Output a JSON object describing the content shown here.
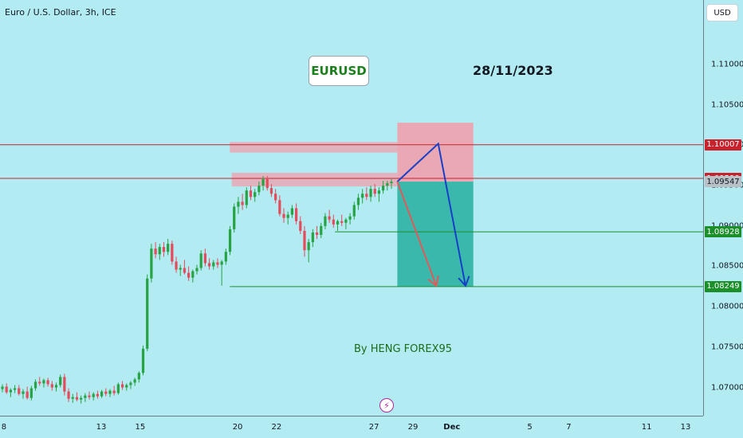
{
  "header": {
    "symbol_title": "Euro / U.S. Dollar, 3h, ICE"
  },
  "annotations": {
    "pair_label": "EURUSD",
    "date_text": "28/11/2023",
    "credit_text": "By HENG FOREX95"
  },
  "toolbar": {
    "currency_button": "USD",
    "flash_icon": "lightning-icon"
  },
  "colors": {
    "background": "#b2ebf2",
    "bull": "#27a344",
    "bear": "#e54b5a",
    "stop_zone": "#f0a0ad",
    "target_zone": "#35b5a8",
    "level_red": "#c8232c",
    "level_green": "#1b8f2a",
    "projection_blue": "#1740c8",
    "projection_red": "#e05a5a"
  },
  "chart_data": {
    "type": "candlestick",
    "title": "Euro / U.S. Dollar, 3h, ICE",
    "ylim": [
      1.0665,
      1.118
    ],
    "y_ticks": [
      1.07,
      1.075,
      1.08,
      1.085,
      1.09,
      1.095,
      1.1,
      1.105,
      1.11
    ],
    "y_tick_labels": [
      "1.07000",
      "1.07500",
      "1.08000",
      "1.08500",
      "1.09000",
      "1.09500",
      "1.10000",
      "1.10500",
      "1.11000"
    ],
    "x_tick_labels": [
      {
        "label": "8",
        "day": 8
      },
      {
        "label": "13",
        "day": 13
      },
      {
        "label": "15",
        "day": 15
      },
      {
        "label": "20",
        "day": 20
      },
      {
        "label": "22",
        "day": 22
      },
      {
        "label": "27",
        "day": 27
      },
      {
        "label": "29",
        "day": 29
      },
      {
        "label": "Dec",
        "day": 31
      },
      {
        "label": "5",
        "day": 35
      },
      {
        "label": "7",
        "day": 37
      },
      {
        "label": "11",
        "day": 41
      },
      {
        "label": "13",
        "day": 43
      }
    ],
    "x_range_days": [
      7.8,
      43.9
    ],
    "candles": [
      [
        1.0698,
        1.0704,
        1.0694,
        1.0701
      ],
      [
        1.0701,
        1.0705,
        1.0692,
        1.0694
      ],
      [
        1.0694,
        1.0699,
        1.0688,
        1.0697
      ],
      [
        1.0697,
        1.0703,
        1.0693,
        1.0699
      ],
      [
        1.0699,
        1.0703,
        1.069,
        1.0692
      ],
      [
        1.0692,
        1.0698,
        1.0686,
        1.0695
      ],
      [
        1.0695,
        1.0701,
        1.0685,
        1.0687
      ],
      [
        1.0687,
        1.0702,
        1.0684,
        1.0699
      ],
      [
        1.0699,
        1.071,
        1.0696,
        1.0707
      ],
      [
        1.0707,
        1.0713,
        1.0702,
        1.0705
      ],
      [
        1.0705,
        1.0711,
        1.07,
        1.0709
      ],
      [
        1.0709,
        1.0712,
        1.0701,
        1.0704
      ],
      [
        1.0704,
        1.0708,
        1.0696,
        1.07
      ],
      [
        1.07,
        1.0706,
        1.0695,
        1.0703
      ],
      [
        1.0703,
        1.0716,
        1.07,
        1.0713
      ],
      [
        1.0713,
        1.0717,
        1.069,
        1.0695
      ],
      [
        1.0695,
        1.0699,
        1.0682,
        1.0686
      ],
      [
        1.0686,
        1.0692,
        1.0681,
        1.0688
      ],
      [
        1.0688,
        1.0694,
        1.0683,
        1.0685
      ],
      [
        1.0685,
        1.069,
        1.068,
        1.0687
      ],
      [
        1.0687,
        1.0693,
        1.0682,
        1.069
      ],
      [
        1.069,
        1.0695,
        1.0685,
        1.0688
      ],
      [
        1.0688,
        1.0694,
        1.0684,
        1.0692
      ],
      [
        1.0692,
        1.0696,
        1.0686,
        1.0689
      ],
      [
        1.0689,
        1.0697,
        1.0687,
        1.0695
      ],
      [
        1.0695,
        1.0699,
        1.0689,
        1.0692
      ],
      [
        1.0692,
        1.0698,
        1.0688,
        1.0696
      ],
      [
        1.0696,
        1.0702,
        1.069,
        1.0693
      ],
      [
        1.0693,
        1.0706,
        1.0691,
        1.0704
      ],
      [
        1.0704,
        1.0708,
        1.0697,
        1.07
      ],
      [
        1.07,
        1.0705,
        1.0696,
        1.0703
      ],
      [
        1.0703,
        1.0708,
        1.0698,
        1.0706
      ],
      [
        1.0706,
        1.0712,
        1.0702,
        1.071
      ],
      [
        1.071,
        1.072,
        1.0706,
        1.0718
      ],
      [
        1.0718,
        1.0752,
        1.0715,
        1.0748
      ],
      [
        1.0748,
        1.084,
        1.0745,
        1.0835
      ],
      [
        1.0835,
        1.0878,
        1.083,
        1.0872
      ],
      [
        1.0872,
        1.088,
        1.086,
        1.0865
      ],
      [
        1.0865,
        1.0878,
        1.0858,
        1.0874
      ],
      [
        1.0874,
        1.088,
        1.0862,
        1.0868
      ],
      [
        1.0868,
        1.0884,
        1.0864,
        1.0878
      ],
      [
        1.0878,
        1.0882,
        1.0852,
        1.0856
      ],
      [
        1.0856,
        1.0862,
        1.0842,
        1.0846
      ],
      [
        1.0846,
        1.0852,
        1.0838,
        1.0848
      ],
      [
        1.0848,
        1.0858,
        1.084,
        1.0842
      ],
      [
        1.0842,
        1.085,
        1.0832,
        1.0836
      ],
      [
        1.0836,
        1.0846,
        1.083,
        1.0844
      ],
      [
        1.0844,
        1.0852,
        1.084,
        1.0848
      ],
      [
        1.0848,
        1.087,
        1.0845,
        1.0866
      ],
      [
        1.0866,
        1.0872,
        1.085,
        1.0854
      ],
      [
        1.0854,
        1.086,
        1.0846,
        1.085
      ],
      [
        1.085,
        1.0858,
        1.0846,
        1.0855
      ],
      [
        1.0855,
        1.086,
        1.0848,
        1.0852
      ],
      [
        1.0852,
        1.0858,
        1.0826,
        1.0856
      ],
      [
        1.0856,
        1.0872,
        1.0852,
        1.0868
      ],
      [
        1.0868,
        1.09,
        1.0864,
        1.0896
      ],
      [
        1.0896,
        1.0928,
        1.0892,
        1.0924
      ],
      [
        1.0924,
        1.0936,
        1.0915,
        1.093
      ],
      [
        1.093,
        1.094,
        1.092,
        1.0926
      ],
      [
        1.0926,
        1.0948,
        1.0922,
        1.0944
      ],
      [
        1.0944,
        1.095,
        1.0932,
        1.0936
      ],
      [
        1.0936,
        1.0946,
        1.093,
        1.0942
      ],
      [
        1.0942,
        1.0955,
        1.0938,
        1.095
      ],
      [
        1.095,
        1.0962,
        1.0944,
        1.0958
      ],
      [
        1.0958,
        1.0962,
        1.0944,
        1.0947
      ],
      [
        1.0947,
        1.0952,
        1.0936,
        1.094
      ],
      [
        1.094,
        1.0946,
        1.0928,
        1.0932
      ],
      [
        1.0932,
        1.0938,
        1.0912,
        1.0915
      ],
      [
        1.0915,
        1.0922,
        1.0904,
        1.091
      ],
      [
        1.091,
        1.0918,
        1.0902,
        1.0914
      ],
      [
        1.0914,
        1.0926,
        1.091,
        1.0922
      ],
      [
        1.0922,
        1.0928,
        1.0902,
        1.0906
      ],
      [
        1.0906,
        1.0912,
        1.089,
        1.0894
      ],
      [
        1.0894,
        1.09,
        1.0862,
        1.087
      ],
      [
        1.087,
        1.0884,
        1.0855,
        1.088
      ],
      [
        1.088,
        1.0896,
        1.0874,
        1.0892
      ],
      [
        1.0892,
        1.09,
        1.0884,
        1.0889
      ],
      [
        1.0889,
        1.0904,
        1.0885,
        1.09
      ],
      [
        1.09,
        1.0916,
        1.0896,
        1.0912
      ],
      [
        1.0912,
        1.092,
        1.0904,
        1.0908
      ],
      [
        1.0908,
        1.0914,
        1.0898,
        1.0902
      ],
      [
        1.0902,
        1.0908,
        1.0894,
        1.0906
      ],
      [
        1.0906,
        1.0914,
        1.09,
        1.0904
      ],
      [
        1.0904,
        1.091,
        1.0896,
        1.0908
      ],
      [
        1.0908,
        1.0916,
        1.0902,
        1.0912
      ],
      [
        1.0912,
        1.093,
        1.0908,
        1.0926
      ],
      [
        1.0926,
        1.094,
        1.092,
        1.0935
      ],
      [
        1.0935,
        1.0946,
        1.0928,
        1.094
      ],
      [
        1.094,
        1.0948,
        1.0932,
        1.0936
      ],
      [
        1.0936,
        1.095,
        1.093,
        1.0946
      ],
      [
        1.0946,
        1.0952,
        1.0936,
        1.094
      ],
      [
        1.094,
        1.0948,
        1.093,
        1.0944
      ],
      [
        1.0944,
        1.0956,
        1.094,
        1.095
      ],
      [
        1.095,
        1.0956,
        1.0944,
        1.0953
      ],
      [
        1.0953,
        1.0958,
        1.0946,
        1.0955
      ]
    ],
    "levels": [
      {
        "name": "resistance-upper",
        "value": 1.10007,
        "label": "1.10007",
        "color": "red",
        "x_start_day": 7.8
      },
      {
        "name": "resistance-lower",
        "value": 1.0959,
        "label": "1.09590",
        "color": "red",
        "x_start_day": 7.8
      },
      {
        "name": "current-price",
        "value": 1.09547,
        "label": "1.09547",
        "color": "grey",
        "x_start_day": 28.2
      },
      {
        "name": "target-1",
        "value": 1.08928,
        "label": "1.08928",
        "color": "green",
        "x_start_day": 25.0
      },
      {
        "name": "target-2",
        "value": 1.08249,
        "label": "1.08249",
        "color": "green",
        "x_start_day": 19.6
      }
    ],
    "supply_zones": [
      {
        "x_start_day": 19.6,
        "x_end_day": 28.2,
        "y_low": 1.0991,
        "y_high": 1.1004
      },
      {
        "x_start_day": 19.7,
        "x_end_day": 28.2,
        "y_low": 1.0949,
        "y_high": 1.0966
      }
    ],
    "short_position": {
      "x_start_day": 28.2,
      "x_end_day": 32.1,
      "entry": 1.0955,
      "stop": 1.1028,
      "target": 1.0825
    },
    "projections": [
      {
        "name": "blue-path",
        "color": "blue",
        "points": [
          [
            28.2,
            1.0955
          ],
          [
            30.3,
            1.1002
          ],
          [
            31.7,
            1.0826
          ]
        ]
      },
      {
        "name": "red-path",
        "color": "red",
        "points": [
          [
            28.2,
            1.0955
          ],
          [
            30.2,
            1.0826
          ]
        ]
      }
    ],
    "grid": false,
    "legend": "none"
  }
}
